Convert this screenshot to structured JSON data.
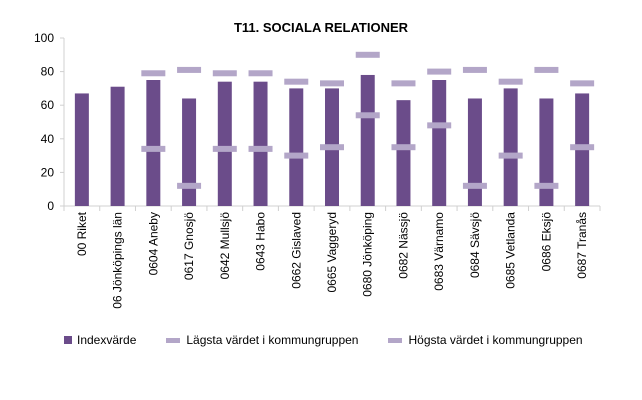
{
  "chart_data": {
    "type": "bar",
    "title": "T11. SOCIALA RELATIONER",
    "categories": [
      "00 Riket",
      "06 Jönköpings län",
      "0604 Aneby",
      "0617 Gnosjö",
      "0642 Mullsjö",
      "0643 Habo",
      "0662 Gislaved",
      "0665 Vaggeryd",
      "0680 Jönköping",
      "0682 Nässjö",
      "0683 Värnamo",
      "0684 Sävsjö",
      "0685 Vetlanda",
      "0686 Eksjö",
      "0687 Tranås"
    ],
    "series": [
      {
        "name": "Indexvärde",
        "kind": "bar",
        "color": "#6B4C8A",
        "values": [
          67,
          71,
          75,
          64,
          74,
          74,
          70,
          70,
          78,
          63,
          75,
          64,
          70,
          64,
          67
        ]
      },
      {
        "name": "Lägsta värdet i kommungruppen",
        "kind": "marker",
        "color": "#B3A6C8",
        "values": [
          null,
          null,
          34,
          12,
          34,
          34,
          30,
          35,
          54,
          35,
          48,
          12,
          30,
          12,
          35
        ]
      },
      {
        "name": "Högsta värdet i kommungruppen",
        "kind": "marker",
        "color": "#B3A6C8",
        "values": [
          null,
          null,
          79,
          81,
          79,
          79,
          74,
          73,
          90,
          73,
          80,
          81,
          74,
          81,
          73
        ]
      }
    ],
    "ylim": [
      0,
      100
    ],
    "yticks": [
      0,
      20,
      40,
      60,
      80,
      100
    ],
    "xlabel": "",
    "ylabel": "",
    "grid": false,
    "legend_position": "bottom"
  },
  "colors": {
    "axis": "#D0D0D0",
    "text": "#000000"
  }
}
